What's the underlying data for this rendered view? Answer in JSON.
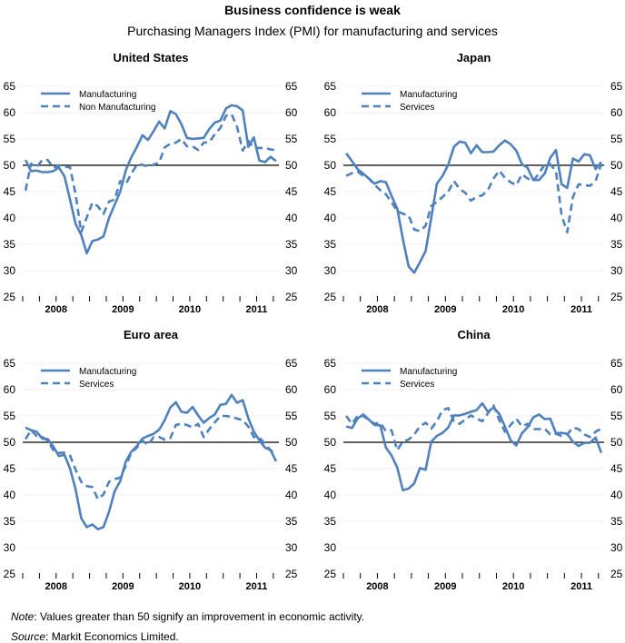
{
  "title": "Business confidence is weak",
  "subtitle": "Purchasing Managers Index (PMI) for manufacturing and services",
  "note_label": "Note",
  "note_text": ": Values greater than 50 signify an improvement in economic activity.",
  "source_label": "Source",
  "source_text": ": Markit Economics Limited.",
  "line_color": "#4f81bd",
  "chart_data": [
    {
      "type": "line",
      "title": "United States",
      "ylim": [
        25,
        65
      ],
      "yticks": [
        25,
        30,
        35,
        40,
        45,
        50,
        55,
        60,
        65
      ],
      "xtick_labels": [
        "2008",
        "2009",
        "2010",
        "2011"
      ],
      "x_start": "2008-01",
      "x_end": "2011-10",
      "x_frequency": "monthly",
      "reference_line": 50,
      "legend": "top-left",
      "series": [
        {
          "name": "Manufacturing",
          "style": "solid",
          "values": [
            51,
            48.9,
            49,
            48.7,
            48.7,
            48.9,
            49.6,
            47.9,
            43.5,
            38.9,
            36.8,
            33.3,
            35.6,
            35.9,
            36.5,
            40,
            42.5,
            45,
            49,
            51.5,
            53.5,
            55.7,
            54.8,
            56.5,
            58.3,
            57,
            60.3,
            59.7,
            57.8,
            55.2,
            55,
            55.1,
            55.2,
            56.9,
            58.1,
            58.5,
            60.8,
            61.4,
            61.2,
            60.4,
            53.5,
            55.3,
            50.9,
            50.6,
            51.6,
            50.8
          ]
        },
        {
          "name": "Non Manufacturing",
          "style": "dashed",
          "values": [
            45.2,
            50.3,
            49.6,
            51,
            51,
            49.5,
            50,
            49.8,
            49.6,
            44.5,
            37.3,
            40.1,
            42.9,
            42.2,
            40.8,
            43.1,
            43.5,
            47,
            46.4,
            48.4,
            50.1,
            50.1,
            49.7,
            50.1,
            50.5,
            53.4,
            54.1,
            54.3,
            55,
            53.6,
            53.6,
            52.9,
            54.3,
            54.4,
            55.9,
            57.1,
            59.4,
            59.7,
            57.3,
            52.8,
            54.6,
            53.3,
            53.3,
            53.3,
            53,
            52.9
          ]
        }
      ]
    },
    {
      "type": "line",
      "title": "Japan",
      "ylim": [
        25,
        65
      ],
      "yticks": [
        25,
        30,
        35,
        40,
        45,
        50,
        55,
        60,
        65
      ],
      "xtick_labels": [
        "2008",
        "2009",
        "2010",
        "2011"
      ],
      "x_start": "2008-01",
      "x_end": "2011-10",
      "x_frequency": "monthly",
      "reference_line": 50,
      "legend": "top-left",
      "series": [
        {
          "name": "Manufacturing",
          "style": "solid",
          "values": [
            52.3,
            50.8,
            49.3,
            48.4,
            47.5,
            46.5,
            47,
            46.8,
            44.2,
            41.8,
            36,
            30.8,
            29.6,
            31.6,
            33.7,
            40,
            46.5,
            48,
            50.1,
            53.5,
            54.5,
            54.3,
            52.3,
            53.8,
            52.5,
            52.5,
            52.6,
            53.8,
            54.7,
            54,
            52.8,
            50.2,
            49.5,
            47.2,
            47.2,
            48.4,
            51.4,
            52.9,
            46.4,
            45.7,
            51.3,
            50.7,
            52.1,
            51.9,
            49.3,
            50.6
          ]
        },
        {
          "name": "Services",
          "style": "dashed",
          "values": [
            48,
            48.5,
            48.8,
            48,
            47.5,
            46.3,
            45.3,
            44.5,
            43,
            41.3,
            40.8,
            40.5,
            37.8,
            37.5,
            38.5,
            42.3,
            43,
            44,
            45,
            47,
            45.5,
            44.8,
            43.3,
            44,
            44.3,
            45.3,
            47.5,
            49,
            47.6,
            46.8,
            46.2,
            48.3,
            47.5,
            47,
            48.5,
            50.1,
            50.2,
            48.9,
            40.5,
            37.3,
            44,
            46.4,
            46.2,
            46.1,
            47,
            50.3
          ]
        }
      ]
    },
    {
      "type": "line",
      "title": "Euro area",
      "ylim": [
        25,
        65
      ],
      "yticks": [
        25,
        30,
        35,
        40,
        45,
        50,
        55,
        60,
        65
      ],
      "xtick_labels": [
        "2008",
        "2009",
        "2010",
        "2011"
      ],
      "x_start": "2008-01",
      "x_end": "2011-10",
      "x_frequency": "monthly",
      "reference_line": 50,
      "legend": "top-left",
      "series": [
        {
          "name": "Manufacturing",
          "style": "solid",
          "values": [
            52.8,
            52.3,
            52,
            50.7,
            50.6,
            49.2,
            47.4,
            47.6,
            45,
            41.1,
            35.6,
            33.9,
            34.4,
            33.5,
            33.9,
            36.8,
            40.7,
            42.6,
            46.3,
            48.2,
            49.3,
            50.7,
            51.2,
            51.6,
            52.4,
            54.2,
            56.6,
            57.6,
            55.8,
            55.6,
            56.7,
            55.1,
            53.7,
            54.6,
            55.3,
            57.1,
            57.3,
            59,
            57.5,
            58,
            54.6,
            52,
            50.4,
            49,
            48.5,
            46.4
          ]
        },
        {
          "name": "Services",
          "style": "dashed",
          "values": [
            50.6,
            52.3,
            51.2,
            51,
            50.3,
            48.5,
            48,
            48,
            47.5,
            44.8,
            42.5,
            41.7,
            41.5,
            39.2,
            40.1,
            42.5,
            43,
            43.3,
            45.5,
            48,
            49,
            50.3,
            49.5,
            51,
            51,
            50.5,
            50.8,
            53.3,
            53.5,
            53.3,
            52.8,
            53.5,
            51,
            52.5,
            53.8,
            55,
            55,
            54.8,
            54.5,
            54.2,
            53,
            51,
            50.9,
            49.7,
            48.5,
            47.7
          ]
        }
      ]
    },
    {
      "type": "line",
      "title": "China",
      "ylim": [
        25,
        65
      ],
      "yticks": [
        25,
        30,
        35,
        40,
        45,
        50,
        55,
        60,
        65
      ],
      "xtick_labels": [
        "2008",
        "2009",
        "2010",
        "2011"
      ],
      "x_start": "2008-01",
      "x_end": "2011-10",
      "x_frequency": "monthly",
      "reference_line": 50,
      "legend": "top-left",
      "series": [
        {
          "name": "Manufacturing",
          "style": "solid",
          "values": [
            53,
            52.7,
            54.5,
            55.3,
            54.3,
            53.3,
            53.2,
            49,
            47.5,
            45.2,
            40.9,
            41.2,
            42.2,
            45.1,
            44.8,
            50.1,
            51.2,
            51.8,
            52.8,
            55.1,
            55.1,
            55.4,
            55.8,
            56.1,
            57.4,
            55.8,
            56.6,
            55.4,
            53,
            50.4,
            49.4,
            51.7,
            52.9,
            54.7,
            55.3,
            54.4,
            54.5,
            51.7,
            51.8,
            51.6,
            50.1,
            49.3,
            49.9,
            49.9,
            50.9,
            48
          ]
        },
        {
          "name": "Services",
          "style": "dashed",
          "values": [
            55,
            53.5,
            55,
            55,
            54.3,
            53.5,
            53.7,
            52.1,
            52.3,
            48.5,
            50.2,
            50.5,
            51.5,
            53,
            53.7,
            52.6,
            54,
            56.1,
            56.5,
            54,
            53.5,
            54.3,
            55.1,
            54.5,
            54,
            55.5,
            57,
            54.2,
            52,
            53.3,
            54.5,
            53,
            53.5,
            52.5,
            52.5,
            52.6,
            51.5,
            51.6,
            51.2,
            51.5,
            52.8,
            52.5,
            51.5,
            51,
            52,
            52.6
          ]
        }
      ]
    }
  ]
}
